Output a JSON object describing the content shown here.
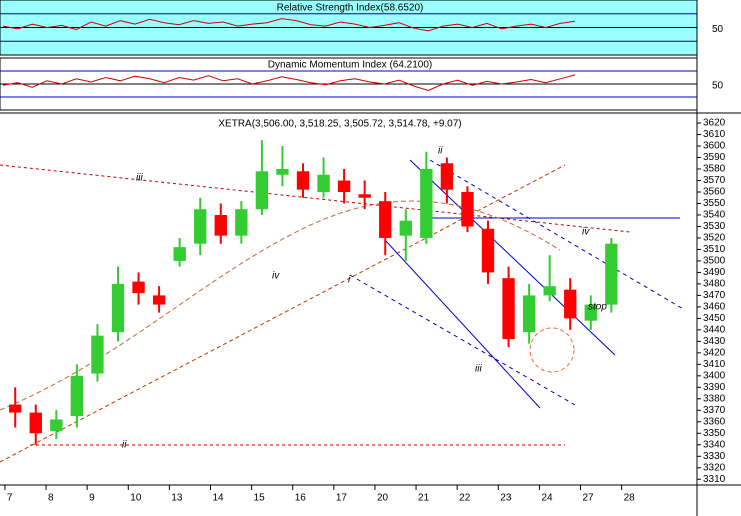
{
  "chart_data": [
    {
      "type": "line",
      "title": "Relative Strength Index(58.6520)",
      "color": "#cc0000",
      "background": "#99ffff",
      "values": [
        52,
        48,
        55,
        50,
        53,
        47,
        58,
        52,
        60,
        55,
        62,
        57,
        54,
        60,
        56,
        58,
        52,
        55,
        57,
        63,
        60,
        54,
        52,
        58,
        55,
        50,
        53,
        57,
        49,
        45,
        52,
        55,
        50,
        56,
        48,
        52,
        55,
        50,
        56,
        59
      ],
      "ylim": [
        10,
        90
      ],
      "yticks": [
        50
      ],
      "levels": [
        30,
        70
      ]
    },
    {
      "type": "line",
      "title": "Dynamic Momentum Index (64.2100)",
      "color": "#cc0000",
      "background": "#ffffff",
      "values": [
        48,
        52,
        45,
        55,
        50,
        58,
        53,
        60,
        55,
        62,
        58,
        52,
        60,
        56,
        63,
        55,
        58,
        50,
        55,
        61,
        57,
        52,
        49,
        55,
        58,
        53,
        50,
        56,
        47,
        40,
        50,
        56,
        48,
        54,
        50,
        53,
        57,
        52,
        58,
        64
      ],
      "ylim": [
        10,
        90
      ],
      "yticks": [
        50
      ],
      "levels": [
        30,
        70
      ]
    },
    {
      "type": "candlestick",
      "title": "XETRA(3,506.00, 3,518.25, 3,505.72, 3,514.78, +9.07)",
      "up_color": "#33cc33",
      "down_color": "#ff0000",
      "x": [
        0.25,
        0.75,
        1.25,
        1.75,
        2.25,
        2.75,
        3.25,
        3.75,
        4.25,
        4.75,
        5.25,
        5.75,
        6.25,
        6.75,
        7.25,
        7.75,
        8.25,
        8.75,
        9.25,
        9.75,
        10.25,
        10.75,
        11.25,
        11.75,
        12.25,
        12.75,
        13.25,
        13.75,
        14.25,
        14.75
      ],
      "open": [
        3375,
        3368,
        3352,
        3365,
        3402,
        3438,
        3482,
        3470,
        3500,
        3515,
        3540,
        3522,
        3545,
        3575,
        3578,
        3560,
        3570,
        3558,
        3552,
        3522,
        3520,
        3585,
        3560,
        3528,
        3485,
        3438,
        3470,
        3475,
        3448,
        3462
      ],
      "high": [
        3390,
        3375,
        3370,
        3410,
        3445,
        3495,
        3490,
        3478,
        3520,
        3555,
        3550,
        3552,
        3605,
        3600,
        3585,
        3590,
        3580,
        3570,
        3560,
        3545,
        3595,
        3590,
        3565,
        3535,
        3495,
        3480,
        3505,
        3485,
        3470,
        3520
      ],
      "low": [
        3355,
        3340,
        3345,
        3355,
        3395,
        3430,
        3462,
        3455,
        3495,
        3505,
        3515,
        3515,
        3540,
        3565,
        3555,
        3555,
        3550,
        3545,
        3505,
        3500,
        3515,
        3550,
        3525,
        3480,
        3425,
        3428,
        3465,
        3440,
        3440,
        3455
      ],
      "close": [
        3368,
        3350,
        3362,
        3400,
        3435,
        3480,
        3472,
        3462,
        3512,
        3545,
        3522,
        3545,
        3578,
        3580,
        3562,
        3575,
        3560,
        3555,
        3520,
        3535,
        3580,
        3562,
        3530,
        3490,
        3432,
        3470,
        3478,
        3450,
        3462,
        3515
      ],
      "xlim": [
        -0.12,
        16.42
      ],
      "xticks": [
        {
          "value": 0,
          "label": "7"
        },
        {
          "value": 1,
          "label": "8"
        },
        {
          "value": 2,
          "label": "9"
        },
        {
          "value": 3,
          "label": "10"
        },
        {
          "value": 4,
          "label": "13"
        },
        {
          "value": 5,
          "label": "14"
        },
        {
          "value": 6,
          "label": "15"
        },
        {
          "value": 7,
          "label": "16"
        },
        {
          "value": 8,
          "label": "17"
        },
        {
          "value": 9,
          "label": "20"
        },
        {
          "value": 10,
          "label": "21"
        },
        {
          "value": 11,
          "label": "22"
        },
        {
          "value": 12,
          "label": "23"
        },
        {
          "value": 13,
          "label": "24"
        },
        {
          "value": 14,
          "label": "27"
        },
        {
          "value": 15,
          "label": "28"
        }
      ],
      "ylim": [
        3305,
        3627
      ],
      "yticks": [
        3310,
        3320,
        3330,
        3340,
        3350,
        3360,
        3370,
        3380,
        3390,
        3400,
        3410,
        3420,
        3430,
        3440,
        3450,
        3460,
        3470,
        3480,
        3490,
        3500,
        3510,
        3520,
        3530,
        3540,
        3550,
        3560,
        3570,
        3580,
        3590,
        3600,
        3610,
        3620
      ],
      "annotations": [
        "iii",
        "iv",
        "i",
        "ii",
        "iii",
        "iv",
        "stop",
        "ii"
      ]
    }
  ]
}
